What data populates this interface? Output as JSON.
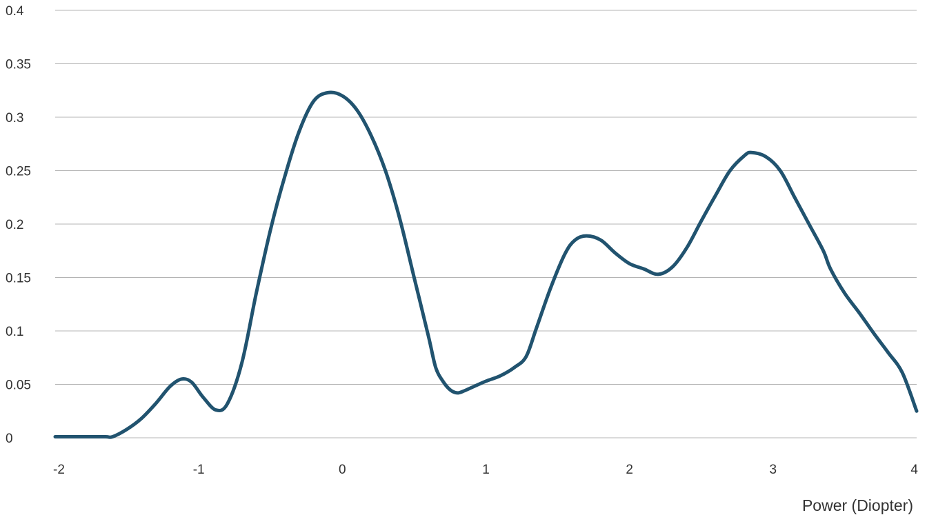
{
  "chart_data": {
    "type": "line",
    "title": "",
    "xlabel": "Power (Diopter)",
    "ylabel": "",
    "xlim": [
      -2,
      4
    ],
    "ylim": [
      0,
      0.4
    ],
    "x_ticks": [
      "-2",
      "-1",
      "0",
      "1",
      "2",
      "3",
      "4"
    ],
    "y_ticks": [
      "0",
      "0.05",
      "0.1",
      "0.15",
      "0.2",
      "0.25",
      "0.3",
      "0.35",
      "0.4"
    ],
    "grid": "horizontal",
    "series": [
      {
        "color": "#21536f",
        "points": [
          [
            -2.0,
            0.001
          ],
          [
            -1.8,
            0.001
          ],
          [
            -1.65,
            0.001
          ],
          [
            -1.6,
            0.001
          ],
          [
            -1.5,
            0.008
          ],
          [
            -1.4,
            0.018
          ],
          [
            -1.3,
            0.032
          ],
          [
            -1.2,
            0.048
          ],
          [
            -1.12,
            0.055
          ],
          [
            -1.05,
            0.052
          ],
          [
            -0.97,
            0.038
          ],
          [
            -0.88,
            0.026
          ],
          [
            -0.8,
            0.032
          ],
          [
            -0.7,
            0.07
          ],
          [
            -0.6,
            0.135
          ],
          [
            -0.5,
            0.195
          ],
          [
            -0.4,
            0.245
          ],
          [
            -0.3,
            0.287
          ],
          [
            -0.2,
            0.315
          ],
          [
            -0.1,
            0.323
          ],
          [
            0.0,
            0.32
          ],
          [
            0.1,
            0.307
          ],
          [
            0.2,
            0.283
          ],
          [
            0.3,
            0.25
          ],
          [
            0.4,
            0.205
          ],
          [
            0.5,
            0.15
          ],
          [
            0.6,
            0.095
          ],
          [
            0.65,
            0.066
          ],
          [
            0.7,
            0.053
          ],
          [
            0.75,
            0.045
          ],
          [
            0.8,
            0.042
          ],
          [
            0.85,
            0.044
          ],
          [
            0.9,
            0.047
          ],
          [
            1.0,
            0.053
          ],
          [
            1.1,
            0.058
          ],
          [
            1.2,
            0.066
          ],
          [
            1.28,
            0.076
          ],
          [
            1.35,
            0.102
          ],
          [
            1.45,
            0.14
          ],
          [
            1.55,
            0.172
          ],
          [
            1.62,
            0.185
          ],
          [
            1.7,
            0.189
          ],
          [
            1.8,
            0.185
          ],
          [
            1.9,
            0.173
          ],
          [
            2.0,
            0.163
          ],
          [
            2.1,
            0.158
          ],
          [
            2.2,
            0.153
          ],
          [
            2.3,
            0.16
          ],
          [
            2.4,
            0.178
          ],
          [
            2.5,
            0.203
          ],
          [
            2.6,
            0.227
          ],
          [
            2.7,
            0.25
          ],
          [
            2.8,
            0.264
          ],
          [
            2.85,
            0.267
          ],
          [
            2.95,
            0.263
          ],
          [
            3.05,
            0.25
          ],
          [
            3.15,
            0.225
          ],
          [
            3.25,
            0.2
          ],
          [
            3.35,
            0.175
          ],
          [
            3.4,
            0.158
          ],
          [
            3.5,
            0.135
          ],
          [
            3.6,
            0.117
          ],
          [
            3.7,
            0.098
          ],
          [
            3.8,
            0.08
          ],
          [
            3.9,
            0.061
          ],
          [
            4.0,
            0.025
          ]
        ]
      }
    ]
  }
}
